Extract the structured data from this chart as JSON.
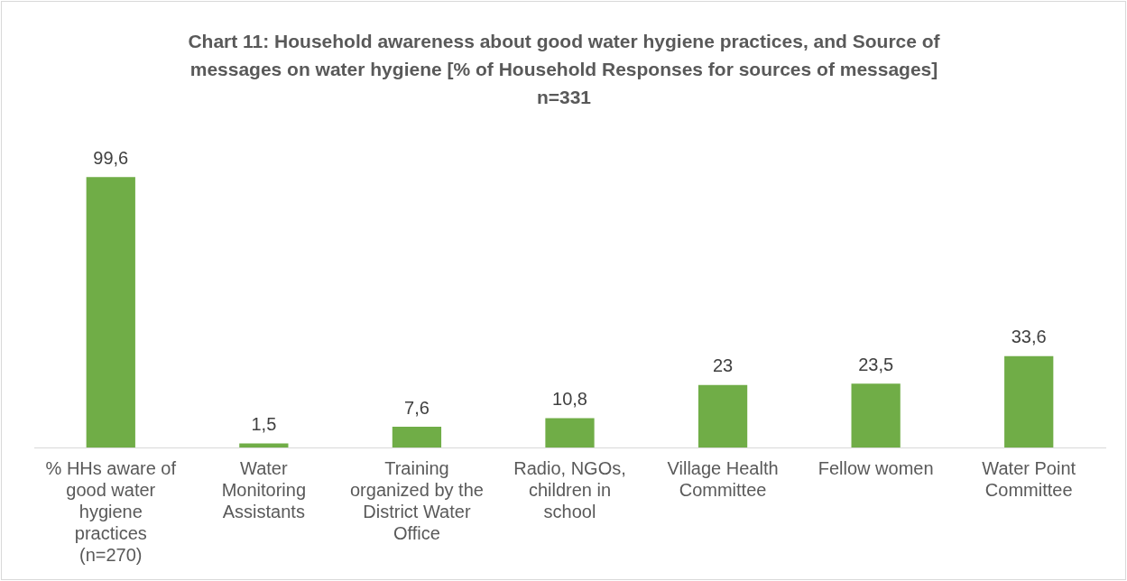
{
  "chart_data": {
    "type": "bar",
    "title": "Chart 11: Household awareness about good water hygiene practices, and Source of messages on water hygiene [%  of Household Responses for sources of messages] n=331",
    "categories": [
      "% HHs aware of good water hygiene practices (n=270)",
      "Water Monitoring Assistants",
      "Training organized by the District Water Office",
      "Radio, NGOs, children in school",
      "Village Health Committee",
      "Fellow women",
      "Water Point Committee"
    ],
    "values": [
      99.6,
      1.5,
      7.6,
      10.8,
      23,
      23.5,
      33.6
    ],
    "value_labels": [
      "99,6",
      "1,5",
      "7,6",
      "10,8",
      "23",
      "23,5",
      "33,6"
    ],
    "color": "#70ad47",
    "grid": false,
    "legend": false
  }
}
